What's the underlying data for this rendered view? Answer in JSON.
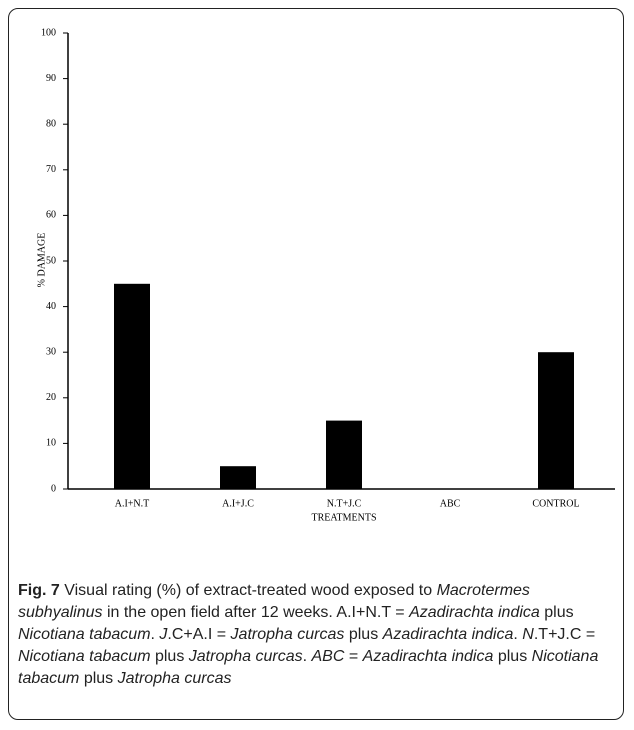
{
  "chart_data": {
    "type": "bar",
    "categories": [
      "A.I+N.T",
      "A.I+J.C",
      "N.T+J.C",
      "ABC",
      "CONTROL"
    ],
    "values": [
      45,
      5,
      15,
      0,
      30
    ],
    "color": "#000000",
    "ylim": [
      0,
      100
    ],
    "yticks": [
      0,
      10,
      20,
      30,
      40,
      50,
      60,
      70,
      80,
      90,
      100
    ],
    "y_label": "% DAMAGE",
    "x_label": "TREATMENTS",
    "grid": false
  },
  "caption": {
    "label": "Fig. 7",
    "parts": [
      " Visual rating (%) of extract-treated wood exposed to ",
      "Macrotermes subhyalinus",
      " in the open field after 12 weeks. A.I+N.T = ",
      "Azadirachta indica",
      " plus ",
      "Nicotiana tabacum",
      ". ",
      "J",
      ".C+A.I = ",
      "Jatropha curcas",
      " plus ",
      "Azadirachta indica",
      ". ",
      "N",
      ".T+J.C = ",
      "Nicotiana tabacum",
      " plus ",
      "Jatropha curcas",
      ". ",
      "ABC",
      " = ",
      "Azadirachta indica",
      " plus ",
      "Nicotiana tabacum",
      " plus ",
      "Jatropha curcas"
    ]
  }
}
